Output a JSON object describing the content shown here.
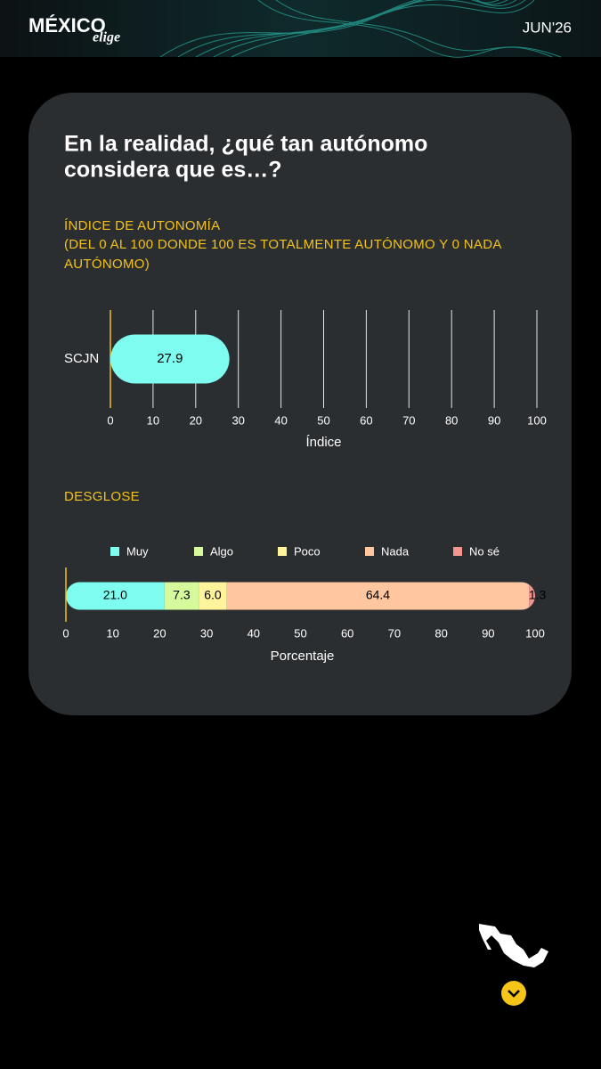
{
  "header": {
    "logo_main": "MÉXICO",
    "logo_sub": "elige",
    "date": "JUN'26"
  },
  "card": {
    "title_lines": [
      "En la realidad, ¿qué tan autónomo",
      "considera que es…?"
    ]
  },
  "chart_data": [
    {
      "type": "hbar",
      "title": "ÍNDICE DE AUTONOMÍA",
      "subtitle_lines": [
        "(DEL 0 AL 100 DONDE 100 ES TOTALMENTE AUTÓNOMO Y 0 NADA",
        "AUTÓNOMO)"
      ],
      "categories": [
        "SCJN"
      ],
      "values": [
        27.9
      ],
      "color": "#7efcef",
      "xlim": [
        0,
        100
      ],
      "xticks": [
        0,
        10,
        20,
        30,
        40,
        50,
        60,
        70,
        80,
        90,
        100
      ],
      "xlabel": "Índice",
      "grid": true
    },
    {
      "type": "stacked_hbar",
      "title": "DESGLOSE",
      "categories": [
        null
      ],
      "series": [
        {
          "name": "Muy",
          "color": "#7efcef",
          "values": [
            21
          ],
          "value_labels": [
            "21.0"
          ]
        },
        {
          "name": "Algo",
          "color": "#d6f99c",
          "values": [
            7.3
          ],
          "value_labels": [
            "7.3"
          ]
        },
        {
          "name": "Poco",
          "color": "#fff49c",
          "values": [
            6
          ],
          "value_labels": [
            "6.0"
          ]
        },
        {
          "name": "Nada",
          "color": "#ffc6a0",
          "values": [
            64.4
          ],
          "value_labels": [
            "64.4"
          ]
        },
        {
          "name": "No sé",
          "color": "#f4958f",
          "values": [
            1.3
          ],
          "value_labels": [
            "1.3"
          ]
        }
      ],
      "xlim": [
        0,
        100
      ],
      "xticks": [
        0,
        10,
        20,
        30,
        40,
        50,
        60,
        70,
        80,
        90,
        100
      ],
      "xlabel": "Porcentaje",
      "legend": "top"
    }
  ]
}
